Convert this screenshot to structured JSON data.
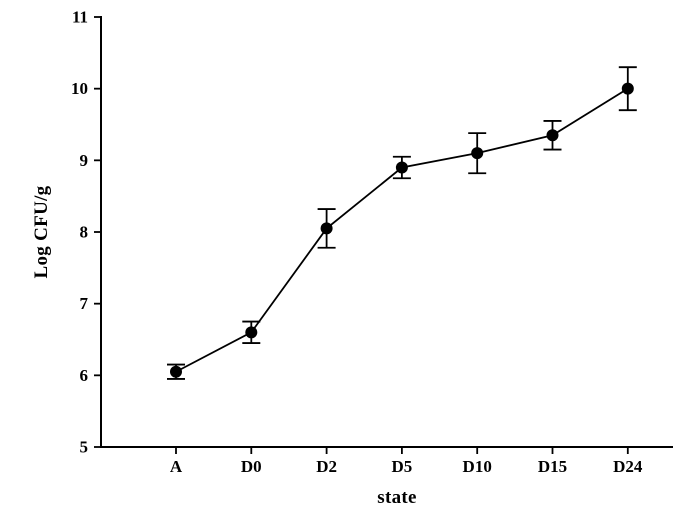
{
  "chart_data": {
    "type": "line",
    "title": "",
    "xlabel": "state",
    "ylabel": "Log CFU/g",
    "categories": [
      "A",
      "D0",
      "D2",
      "D5",
      "D10",
      "D15",
      "D24"
    ],
    "series": [
      {
        "name": "Log CFU/g",
        "values": [
          6.05,
          6.6,
          8.05,
          8.9,
          9.1,
          9.35,
          10.0
        ],
        "errors": [
          0.1,
          0.15,
          0.27,
          0.15,
          0.28,
          0.2,
          0.3
        ]
      }
    ],
    "ylim": [
      5,
      11
    ],
    "yticks": [
      5,
      6,
      7,
      8,
      9,
      10,
      11
    ],
    "grid": false,
    "legend": "none",
    "marker": "filled-circle",
    "error_bars": true,
    "line_color": "#000000",
    "marker_color": "#000000",
    "axis_color": "#000000",
    "text_color": "#000000",
    "background": "#ffffff"
  }
}
